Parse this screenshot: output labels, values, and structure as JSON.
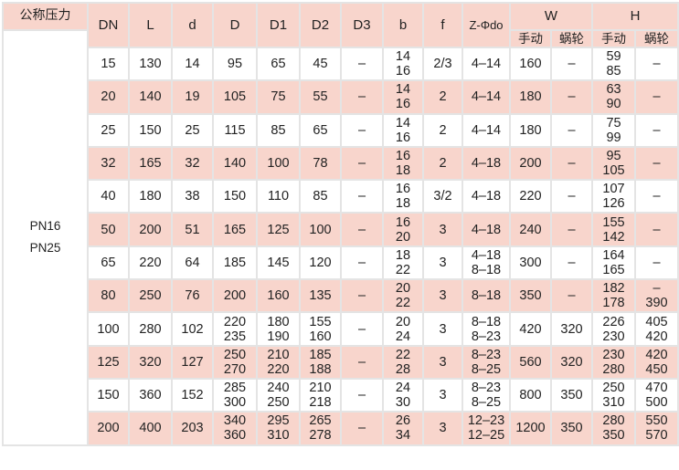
{
  "header": {
    "pressure_label": "公称压力",
    "columns": [
      "DN",
      "L",
      "d",
      "D",
      "D1",
      "D2",
      "D3",
      "b",
      "f",
      "Z-Φdo"
    ],
    "W": "W",
    "H": "H",
    "sub": [
      "手动",
      "蜗轮",
      "手动",
      "蜗轮"
    ]
  },
  "pressure_value": "PN16\nPN25",
  "rows": [
    [
      "15",
      "130",
      "14",
      "95",
      "65",
      "45",
      "–",
      "14\n16",
      "2/3",
      "4–14",
      "160",
      "–",
      "59\n85",
      "–"
    ],
    [
      "20",
      "140",
      "19",
      "105",
      "75",
      "55",
      "–",
      "14\n16",
      "2",
      "4–14",
      "180",
      "–",
      "63\n90",
      "–"
    ],
    [
      "25",
      "150",
      "25",
      "115",
      "85",
      "65",
      "–",
      "14\n16",
      "2",
      "4–14",
      "180",
      "–",
      "75\n99",
      "–"
    ],
    [
      "32",
      "165",
      "32",
      "140",
      "100",
      "78",
      "–",
      "16\n18",
      "2",
      "4–18",
      "200",
      "–",
      "95\n105",
      "–"
    ],
    [
      "40",
      "180",
      "38",
      "150",
      "110",
      "85",
      "–",
      "16\n18",
      "3/2",
      "4–18",
      "220",
      "–",
      "107\n126",
      "–"
    ],
    [
      "50",
      "200",
      "51",
      "165",
      "125",
      "100",
      "–",
      "16\n20",
      "3",
      "4–18",
      "240",
      "–",
      "155\n142",
      "–"
    ],
    [
      "65",
      "220",
      "64",
      "185",
      "145",
      "120",
      "–",
      "18\n22",
      "3",
      "4–18\n8–18",
      "300",
      "–",
      "164\n165",
      "–"
    ],
    [
      "80",
      "250",
      "76",
      "200",
      "160",
      "135",
      "–",
      "20\n22",
      "3",
      "8–18",
      "350",
      "–",
      "182\n178",
      "–\n390"
    ],
    [
      "100",
      "280",
      "102",
      "220\n235",
      "180\n190",
      "155\n160",
      "–",
      "20\n24",
      "3",
      "8–18\n8–23",
      "420",
      "320",
      "226\n230",
      "405\n420"
    ],
    [
      "125",
      "320",
      "127",
      "250\n270",
      "210\n220",
      "185\n188",
      "–",
      "22\n28",
      "3",
      "8–23\n8–25",
      "560",
      "320",
      "230\n280",
      "420\n450"
    ],
    [
      "150",
      "360",
      "152",
      "285\n300",
      "240\n250",
      "210\n218",
      "–",
      "24\n30",
      "3",
      "8–23\n8–25",
      "800",
      "350",
      "250\n310",
      "470\n500"
    ],
    [
      "200",
      "400",
      "203",
      "340\n360",
      "295\n310",
      "265\n278",
      "–",
      "26\n34",
      "3",
      "12–23\n12–25",
      "1200",
      "350",
      "280\n350",
      "550\n570"
    ]
  ],
  "colors": {
    "pink": "#f8d5cc",
    "border": "#e4e4e4"
  }
}
